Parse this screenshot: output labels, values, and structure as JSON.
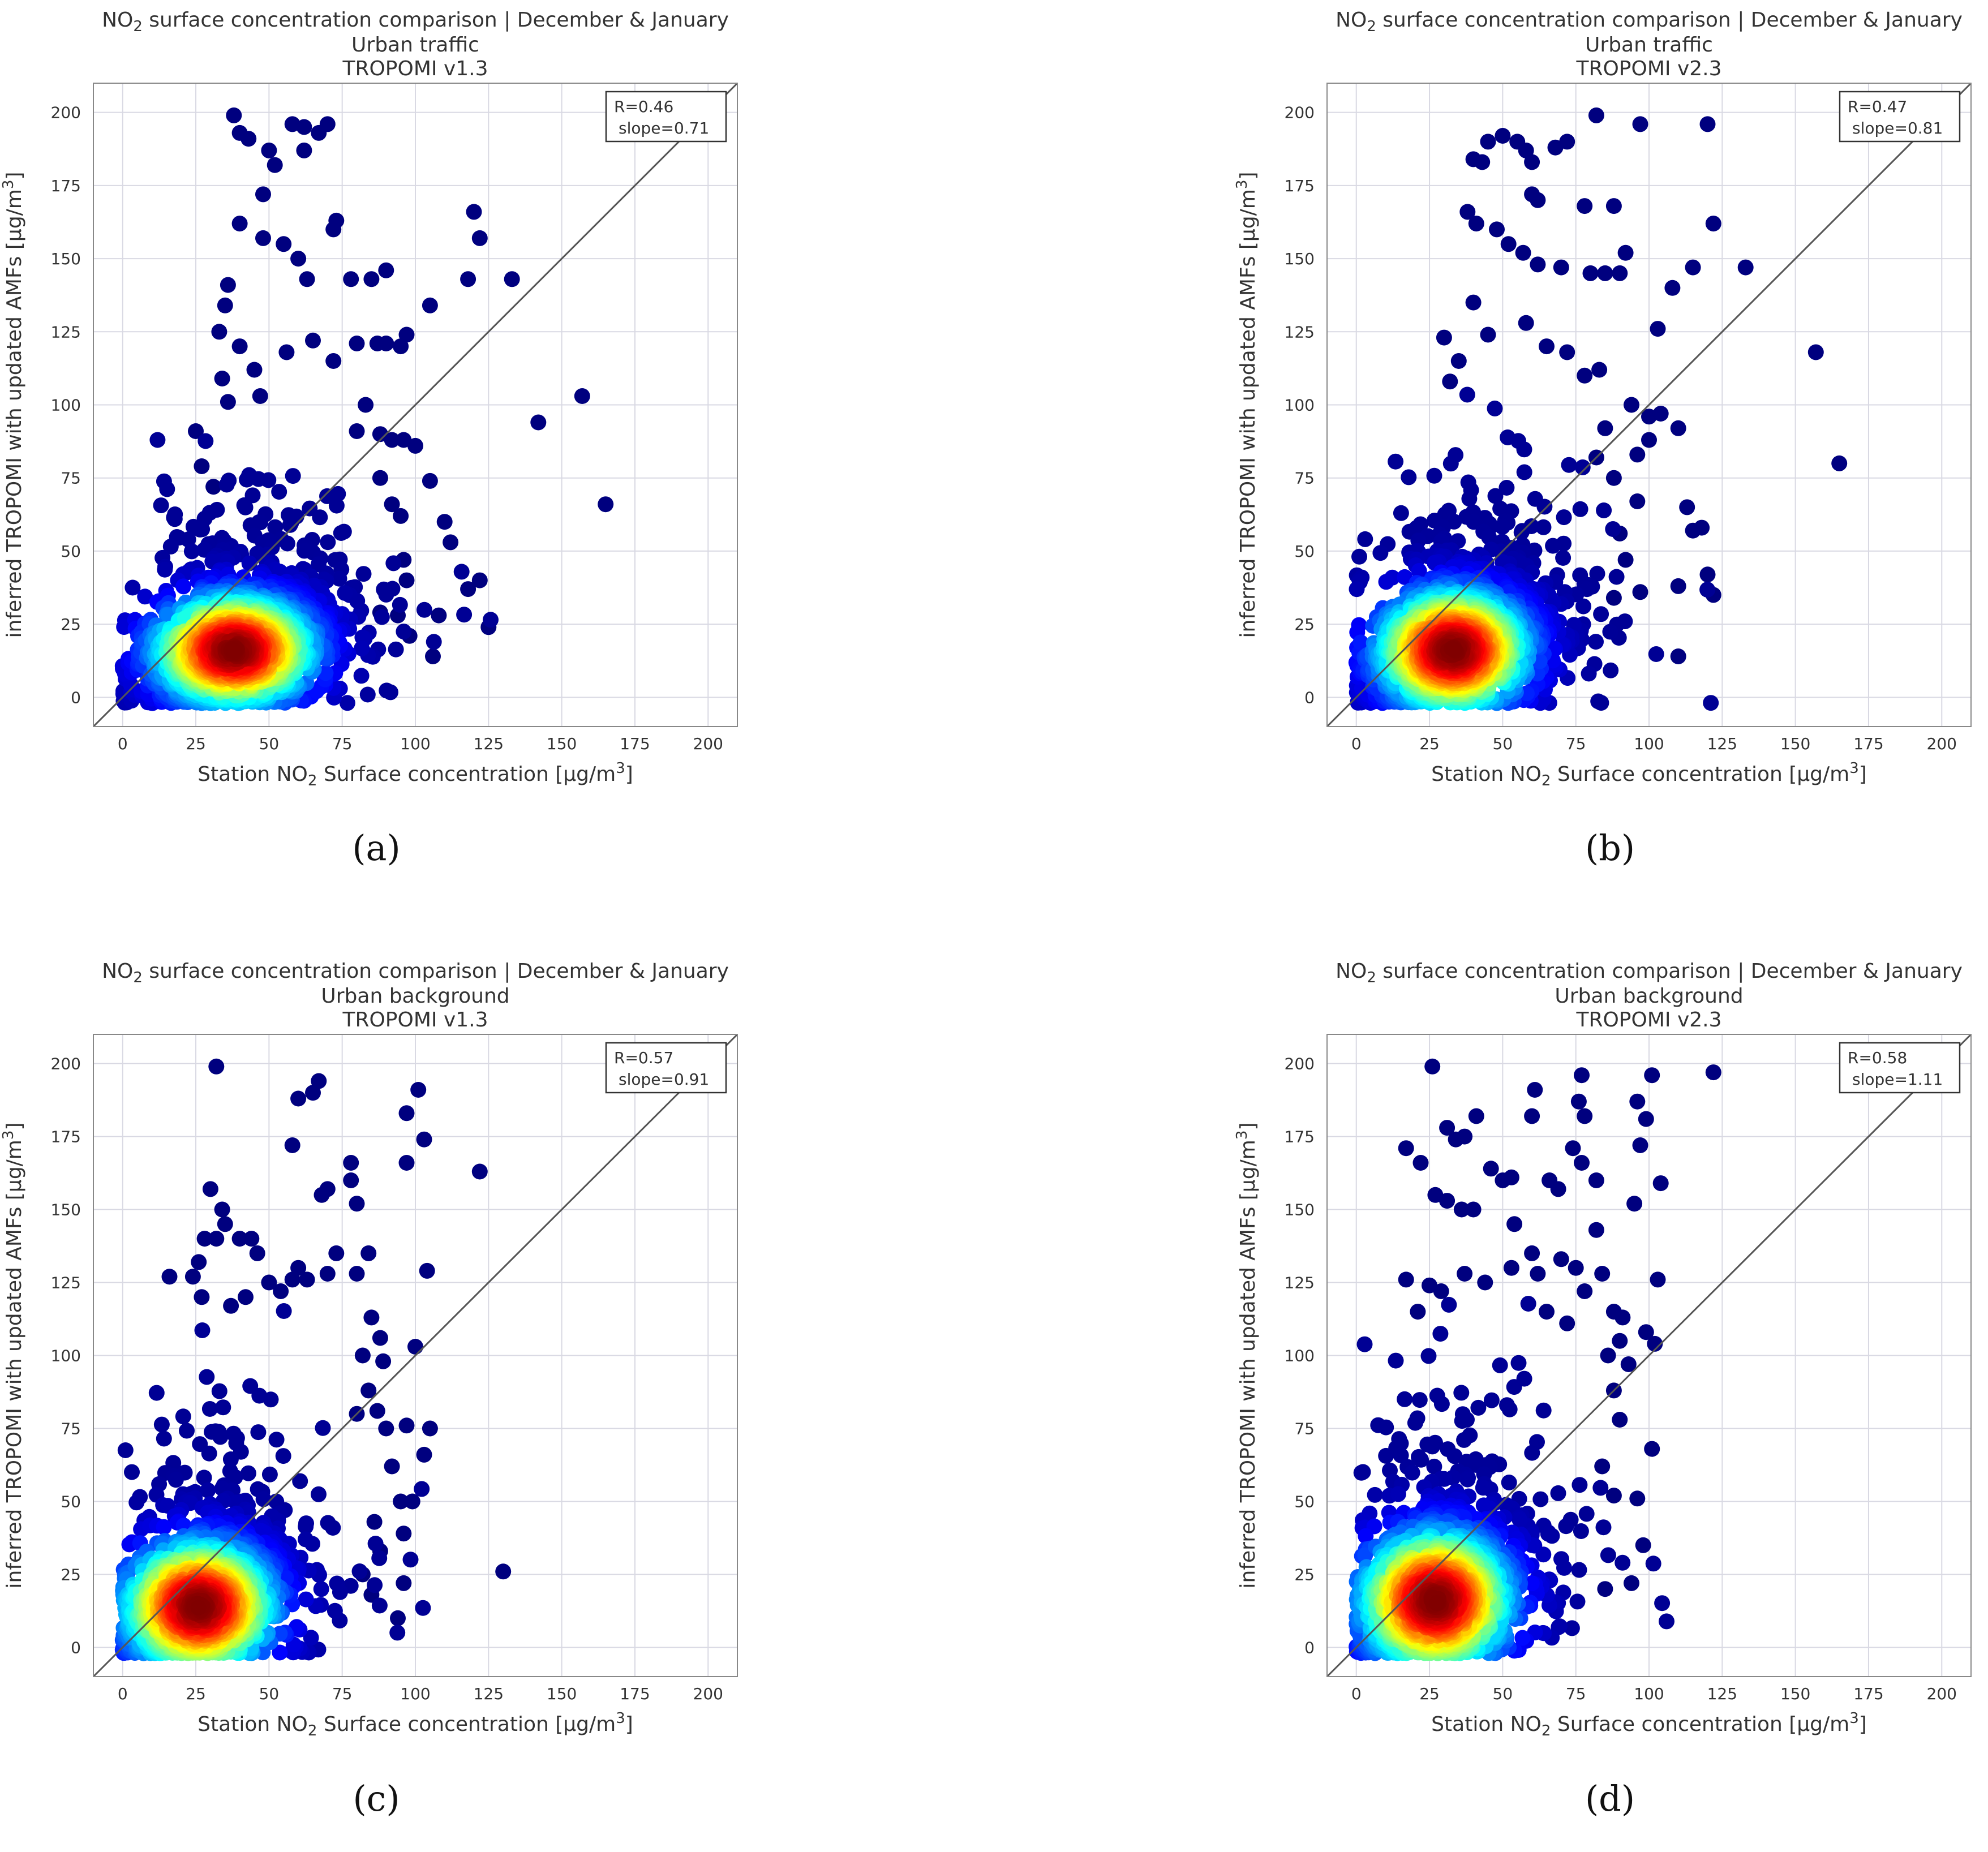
{
  "figure": {
    "captions": [
      "(a)",
      "(b)",
      "(c)",
      "(d)"
    ],
    "colors": {
      "grid": "#d9d9e3",
      "axes": "#888888",
      "identity_line": "#555555",
      "colormap": [
        "#00007f",
        "#0000ff",
        "#007fff",
        "#00e5ff",
        "#7fff7f",
        "#ffe500",
        "#ff7f00",
        "#ff0000",
        "#7f0000"
      ]
    }
  },
  "chart_data": [
    {
      "type": "scatter",
      "panel": "(a)",
      "title_prefix": "NO",
      "title_sub": "2",
      "title_suffix": " surface concentration comparison | December & January",
      "title_line2": "Urban traffic",
      "title_line3": "TROPOMI v1.3",
      "xlabel_prefix": "Station NO",
      "xlabel_sub": "2",
      "xlabel_suffix": " Surface concentration [µg/m",
      "xlabel_sup": "3",
      "xlabel_end": "]",
      "ylabel_main": "inferred TROPOMI with updated AMFs [µg/m",
      "ylabel_sup": "3",
      "ylabel_end": "]",
      "xlim": [
        -10,
        210
      ],
      "ylim": [
        -10,
        210
      ],
      "xticks": [
        0,
        25,
        50,
        75,
        100,
        125,
        150,
        175,
        200
      ],
      "yticks": [
        0,
        25,
        50,
        75,
        100,
        125,
        150,
        175,
        200
      ],
      "stats_line1": "R=0.46",
      "stats_line2": "slope=0.71",
      "identity_line": true,
      "cluster": {
        "cx": 38,
        "cy": 16,
        "sx": 16,
        "sy": 11,
        "n": 1700
      },
      "outliers": [
        [
          38,
          199
        ],
        [
          40,
          193
        ],
        [
          43,
          191
        ],
        [
          58,
          196
        ],
        [
          62,
          195
        ],
        [
          67,
          193
        ],
        [
          70,
          196
        ],
        [
          62,
          187
        ],
        [
          50,
          187
        ],
        [
          52,
          182
        ],
        [
          48,
          172
        ],
        [
          40,
          162
        ],
        [
          48,
          157
        ],
        [
          55,
          155
        ],
        [
          60,
          150
        ],
        [
          63,
          143
        ],
        [
          73,
          163
        ],
        [
          72,
          160
        ],
        [
          78,
          143
        ],
        [
          85,
          143
        ],
        [
          90,
          146
        ],
        [
          120,
          166
        ],
        [
          122,
          157
        ],
        [
          133,
          143
        ],
        [
          118,
          143
        ],
        [
          105,
          134
        ],
        [
          97,
          124
        ],
        [
          95,
          120
        ],
        [
          90,
          121
        ],
        [
          87,
          121
        ],
        [
          88,
          90
        ],
        [
          92,
          88
        ],
        [
          96,
          88
        ],
        [
          100,
          86
        ],
        [
          105,
          74
        ],
        [
          110,
          60
        ],
        [
          112,
          53
        ],
        [
          118,
          37
        ],
        [
          122,
          40
        ],
        [
          125,
          24
        ],
        [
          108,
          28
        ],
        [
          106,
          14
        ],
        [
          98,
          21
        ],
        [
          157,
          103
        ],
        [
          142,
          94
        ],
        [
          165,
          66
        ],
        [
          36,
          141
        ],
        [
          35,
          134
        ],
        [
          33,
          125
        ],
        [
          34,
          109
        ],
        [
          36,
          101
        ],
        [
          25,
          91
        ],
        [
          27,
          79
        ],
        [
          31,
          72
        ],
        [
          40,
          120
        ],
        [
          45,
          112
        ],
        [
          47,
          103
        ],
        [
          56,
          118
        ],
        [
          65,
          122
        ],
        [
          72,
          115
        ],
        [
          80,
          121
        ],
        [
          83,
          100
        ],
        [
          80,
          91
        ],
        [
          88,
          75
        ],
        [
          92,
          66
        ],
        [
          95,
          62
        ],
        [
          96,
          47
        ],
        [
          97,
          40
        ],
        [
          94,
          28
        ],
        [
          88,
          29
        ]
      ]
    },
    {
      "type": "scatter",
      "panel": "(b)",
      "title_prefix": "NO",
      "title_sub": "2",
      "title_suffix": " surface concentration comparison | December & January",
      "title_line2": "Urban traffic",
      "title_line3": "TROPOMI v2.3",
      "xlabel_prefix": "Station NO",
      "xlabel_sub": "2",
      "xlabel_suffix": " Surface concentration [µg/m",
      "xlabel_sup": "3",
      "xlabel_end": "]",
      "ylabel_main": "inferred TROPOMI with updated AMFs [µg/m",
      "ylabel_sup": "3",
      "ylabel_end": "]",
      "xlim": [
        -10,
        210
      ],
      "ylim": [
        -10,
        210
      ],
      "xticks": [
        0,
        25,
        50,
        75,
        100,
        125,
        150,
        175,
        200
      ],
      "yticks": [
        0,
        25,
        50,
        75,
        100,
        125,
        150,
        175,
        200
      ],
      "stats_line1": "R=0.47",
      "stats_line2": "slope=0.81",
      "identity_line": true,
      "cluster": {
        "cx": 33,
        "cy": 16,
        "sx": 15,
        "sy": 12,
        "n": 1700
      },
      "outliers": [
        [
          82,
          199
        ],
        [
          97,
          196
        ],
        [
          120,
          196
        ],
        [
          50,
          192
        ],
        [
          55,
          190
        ],
        [
          45,
          190
        ],
        [
          58,
          187
        ],
        [
          60,
          183
        ],
        [
          72,
          190
        ],
        [
          68,
          188
        ],
        [
          40,
          184
        ],
        [
          43,
          183
        ],
        [
          60,
          172
        ],
        [
          62,
          170
        ],
        [
          38,
          166
        ],
        [
          41,
          162
        ],
        [
          48,
          160
        ],
        [
          52,
          155
        ],
        [
          57,
          152
        ],
        [
          62,
          148
        ],
        [
          70,
          147
        ],
        [
          80,
          145
        ],
        [
          85,
          145
        ],
        [
          90,
          145
        ],
        [
          92,
          152
        ],
        [
          88,
          168
        ],
        [
          78,
          168
        ],
        [
          115,
          147
        ],
        [
          133,
          147
        ],
        [
          122,
          162
        ],
        [
          108,
          140
        ],
        [
          103,
          126
        ],
        [
          110,
          92
        ],
        [
          113,
          65
        ],
        [
          110,
          38
        ],
        [
          115,
          57
        ],
        [
          118,
          58
        ],
        [
          120,
          42
        ],
        [
          122,
          35
        ],
        [
          110,
          14
        ],
        [
          157,
          118
        ],
        [
          165,
          80
        ],
        [
          100,
          88
        ],
        [
          96,
          67
        ],
        [
          90,
          56
        ],
        [
          92,
          47
        ],
        [
          97,
          36
        ],
        [
          88,
          34
        ],
        [
          30,
          123
        ],
        [
          35,
          115
        ],
        [
          32,
          108
        ],
        [
          40,
          135
        ],
        [
          45,
          124
        ],
        [
          58,
          128
        ],
        [
          65,
          120
        ],
        [
          72,
          118
        ],
        [
          78,
          110
        ],
        [
          83,
          112
        ],
        [
          94,
          100
        ],
        [
          100,
          96
        ],
        [
          104,
          97
        ],
        [
          85,
          92
        ],
        [
          82,
          82
        ],
        [
          88,
          75
        ],
        [
          96,
          83
        ]
      ]
    },
    {
      "type": "scatter",
      "panel": "(c)",
      "title_prefix": "NO",
      "title_sub": "2",
      "title_suffix": " surface concentration comparison | December & January",
      "title_line2": "Urban background",
      "title_line3": "TROPOMI v1.3",
      "xlabel_prefix": "Station NO",
      "xlabel_sub": "2",
      "xlabel_suffix": " Surface concentration [µg/m",
      "xlabel_sup": "3",
      "xlabel_end": "]",
      "ylabel_main": "inferred TROPOMI with updated AMFs [µg/m",
      "ylabel_sup": "3",
      "ylabel_end": "]",
      "xlim": [
        -10,
        210
      ],
      "ylim": [
        -10,
        210
      ],
      "xticks": [
        0,
        25,
        50,
        75,
        100,
        125,
        150,
        175,
        200
      ],
      "yticks": [
        0,
        25,
        50,
        75,
        100,
        125,
        150,
        175,
        200
      ],
      "stats_line1": "R=0.57",
      "stats_line2": "slope=0.91",
      "identity_line": true,
      "cluster": {
        "cx": 26,
        "cy": 14,
        "sx": 15,
        "sy": 13,
        "n": 1500
      },
      "outliers": [
        [
          32,
          199
        ],
        [
          67,
          194
        ],
        [
          65,
          190
        ],
        [
          60,
          188
        ],
        [
          101,
          191
        ],
        [
          97,
          183
        ],
        [
          103,
          174
        ],
        [
          97,
          166
        ],
        [
          122,
          163
        ],
        [
          78,
          166
        ],
        [
          78,
          160
        ],
        [
          70,
          157
        ],
        [
          68,
          155
        ],
        [
          58,
          172
        ],
        [
          80,
          152
        ],
        [
          84,
          135
        ],
        [
          104,
          129
        ],
        [
          100,
          103
        ],
        [
          103,
          66
        ],
        [
          105,
          75
        ],
        [
          97,
          76
        ],
        [
          96,
          22
        ],
        [
          96,
          39
        ],
        [
          94,
          10
        ],
        [
          95,
          50
        ],
        [
          130,
          26
        ],
        [
          30,
          157
        ],
        [
          34,
          150
        ],
        [
          35,
          145
        ],
        [
          28,
          140
        ],
        [
          32,
          140
        ],
        [
          40,
          140
        ],
        [
          44,
          140
        ],
        [
          46,
          135
        ],
        [
          26,
          132
        ],
        [
          24,
          127
        ],
        [
          16,
          127
        ],
        [
          27,
          120
        ],
        [
          37,
          117
        ],
        [
          42,
          120
        ],
        [
          50,
          125
        ],
        [
          54,
          122
        ],
        [
          58,
          126
        ],
        [
          60,
          130
        ],
        [
          63,
          126
        ],
        [
          70,
          128
        ],
        [
          73,
          135
        ],
        [
          80,
          128
        ],
        [
          85,
          113
        ],
        [
          88,
          106
        ],
        [
          89,
          98
        ],
        [
          82,
          100
        ],
        [
          84,
          88
        ],
        [
          80,
          80
        ],
        [
          87,
          81
        ],
        [
          90,
          75
        ],
        [
          92,
          62
        ],
        [
          99,
          50
        ],
        [
          86,
          43
        ],
        [
          88,
          33
        ],
        [
          82,
          25
        ],
        [
          85,
          18
        ]
      ]
    },
    {
      "type": "scatter",
      "panel": "(d)",
      "title_prefix": "NO",
      "title_sub": "2",
      "title_suffix": " surface concentration comparison | December & January",
      "title_line2": "Urban background",
      "title_line3": "TROPOMI v2.3",
      "xlabel_prefix": "Station NO",
      "xlabel_sub": "2",
      "xlabel_suffix": " Surface concentration [µg/m",
      "xlabel_sup": "3",
      "xlabel_end": "]",
      "ylabel_main": "inferred TROPOMI with updated AMFs [µg/m",
      "ylabel_sup": "3",
      "ylabel_end": "]",
      "xlim": [
        -10,
        210
      ],
      "ylim": [
        -10,
        210
      ],
      "xticks": [
        0,
        25,
        50,
        75,
        100,
        125,
        150,
        175,
        200
      ],
      "yticks": [
        0,
        25,
        50,
        75,
        100,
        125,
        150,
        175,
        200
      ],
      "stats_line1": "R=0.58",
      "stats_line2": "slope=1.11",
      "identity_line": true,
      "cluster": {
        "cx": 27,
        "cy": 16,
        "sx": 15,
        "sy": 14,
        "n": 1500
      },
      "outliers": [
        [
          26,
          199
        ],
        [
          77,
          196
        ],
        [
          101,
          196
        ],
        [
          122,
          197
        ],
        [
          96,
          187
        ],
        [
          99,
          181
        ],
        [
          76,
          187
        ],
        [
          78,
          182
        ],
        [
          61,
          191
        ],
        [
          60,
          182
        ],
        [
          31,
          178
        ],
        [
          34,
          174
        ],
        [
          37,
          175
        ],
        [
          41,
          182
        ],
        [
          17,
          171
        ],
        [
          22,
          166
        ],
        [
          27,
          155
        ],
        [
          31,
          153
        ],
        [
          36,
          150
        ],
        [
          40,
          150
        ],
        [
          46,
          164
        ],
        [
          50,
          160
        ],
        [
          53,
          161
        ],
        [
          54,
          145
        ],
        [
          74,
          171
        ],
        [
          77,
          166
        ],
        [
          66,
          160
        ],
        [
          69,
          157
        ],
        [
          82,
          160
        ],
        [
          97,
          172
        ],
        [
          104,
          159
        ],
        [
          95,
          152
        ],
        [
          82,
          143
        ],
        [
          84,
          128
        ],
        [
          88,
          115
        ],
        [
          91,
          113
        ],
        [
          90,
          105
        ],
        [
          93,
          97
        ],
        [
          99,
          108
        ],
        [
          102,
          104
        ],
        [
          103,
          126
        ],
        [
          101,
          68
        ],
        [
          98,
          35
        ],
        [
          96,
          51
        ],
        [
          94,
          22
        ],
        [
          85,
          20
        ],
        [
          17,
          126
        ],
        [
          25,
          124
        ],
        [
          29,
          122
        ],
        [
          21,
          115
        ],
        [
          37,
          128
        ],
        [
          44,
          125
        ],
        [
          53,
          130
        ],
        [
          60,
          135
        ],
        [
          62,
          128
        ],
        [
          70,
          133
        ],
        [
          75,
          130
        ],
        [
          78,
          122
        ],
        [
          65,
          115
        ],
        [
          72,
          111
        ],
        [
          86,
          100
        ],
        [
          88,
          88
        ],
        [
          90,
          78
        ],
        [
          84,
          62
        ],
        [
          88,
          52
        ]
      ]
    }
  ]
}
